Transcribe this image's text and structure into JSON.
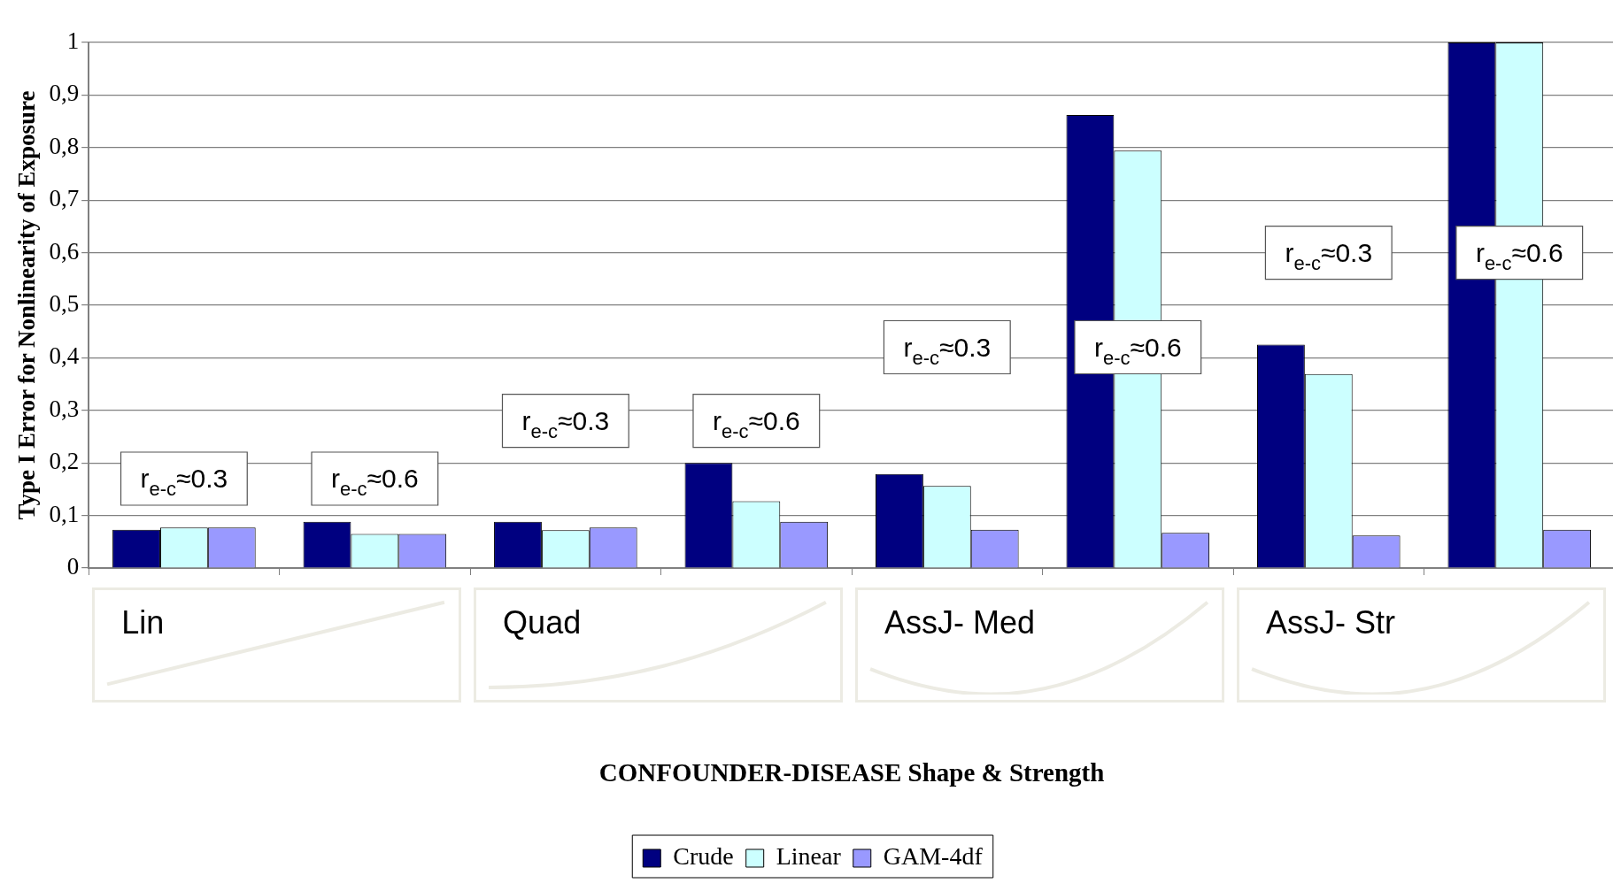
{
  "chart_data": {
    "type": "bar",
    "ylabel": "Type I Error for Nonlinearity of Exposure",
    "categories": [
      null,
      null,
      null,
      null,
      null,
      null,
      null,
      null
    ],
    "series": [
      {
        "name": "Crude",
        "color": "#000080",
        "values": [
          0.073,
          0.088,
          0.088,
          0.2,
          0.179,
          0.862,
          0.425,
          1
        ]
      },
      {
        "name": "Linear",
        "color": "#ccffff",
        "values": [
          0.077,
          0.065,
          0.072,
          0.127,
          0.156,
          0.794,
          0.369,
          1
        ]
      },
      {
        "name": "GAM-4df",
        "color": "#9999ff",
        "values": [
          0.077,
          0.065,
          0.077,
          0.088,
          0.073,
          0.067,
          0.062,
          0.073
        ]
      }
    ],
    "ylim": [
      0,
      1
    ],
    "yticks": [
      0,
      {
        "value": 0.1,
        "label": "0,1"
      },
      {
        "value": 0.2,
        "label": "0,2"
      },
      {
        "value": 0.3,
        "label": "0,3"
      },
      {
        "value": 0.4,
        "label": "0,4"
      },
      {
        "value": 0.5,
        "label": "0,5"
      },
      {
        "value": 0.6,
        "label": "0,6"
      },
      {
        "value": 0.7,
        "label": "0,7"
      },
      {
        "value": 0.8,
        "label": "0,8"
      },
      {
        "value": 0.9,
        "label": "0,9"
      },
      1
    ],
    "grid": "y",
    "legend": "bottom",
    "annotations": [
      "r$_{e-c}$≈0.3",
      "r$_{e-c}$≈0.6",
      "r$_{e-c}$≈0.3",
      "r$_{e-c}$≈0.6",
      "r$_{e-c}$≈0.3",
      "r$_{e-c}$≈0.6",
      "r$_{e-c}$≈0.3",
      "r$_{e-c}$≈0.6",
      "Lin",
      "Quad",
      "AssJ- Med",
      "AssJ- Str",
      "CONFOUNDER-DISEASE Shape & Strength"
    ]
  }
}
